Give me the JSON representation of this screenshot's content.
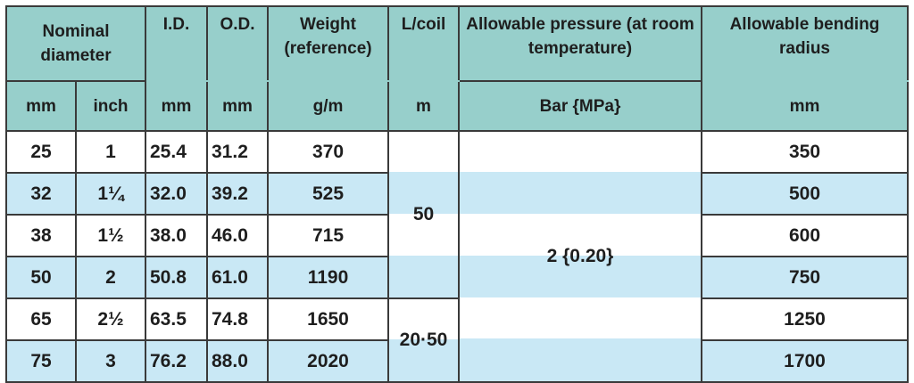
{
  "headers": {
    "nominal_diameter": "Nominal diameter",
    "id": "I.D.",
    "od": "O.D.",
    "weight": "Weight (reference)",
    "lcoil": "L/coil",
    "pressure": "Allowable pressure (at room temperature)",
    "bending": "Allowable bending radius"
  },
  "units": {
    "mm": "mm",
    "inch": "inch",
    "id": "mm",
    "od": "mm",
    "weight": "g/m",
    "lcoil": "m",
    "pressure": "Bar {MPa}",
    "bending": "mm"
  },
  "rows": [
    {
      "mm": "25",
      "inch": "1",
      "id": "25.4",
      "od": "31.2",
      "weight": "370",
      "bending": "350"
    },
    {
      "mm": "32",
      "inch": "1¼",
      "id": "32.0",
      "od": "39.2",
      "weight": "525",
      "bending": "500"
    },
    {
      "mm": "38",
      "inch": "1½",
      "id": "38.0",
      "od": "46.0",
      "weight": "715",
      "bending": "600"
    },
    {
      "mm": "50",
      "inch": "2",
      "id": "50.8",
      "od": "61.0",
      "weight": "1190",
      "bending": "750"
    },
    {
      "mm": "65",
      "inch": "2½",
      "id": "63.5",
      "od": "74.8",
      "weight": "1650",
      "bending": "1250"
    },
    {
      "mm": "75",
      "inch": "3",
      "id": "76.2",
      "od": "88.0",
      "weight": "2020",
      "bending": "1700"
    }
  ],
  "lcoil_groups": [
    "50",
    "20·50"
  ],
  "pressure_value": "2 {0.20}",
  "colors": {
    "header": "#97cfcb",
    "band": "#c9e8f5",
    "border": "#3a3a3a"
  }
}
